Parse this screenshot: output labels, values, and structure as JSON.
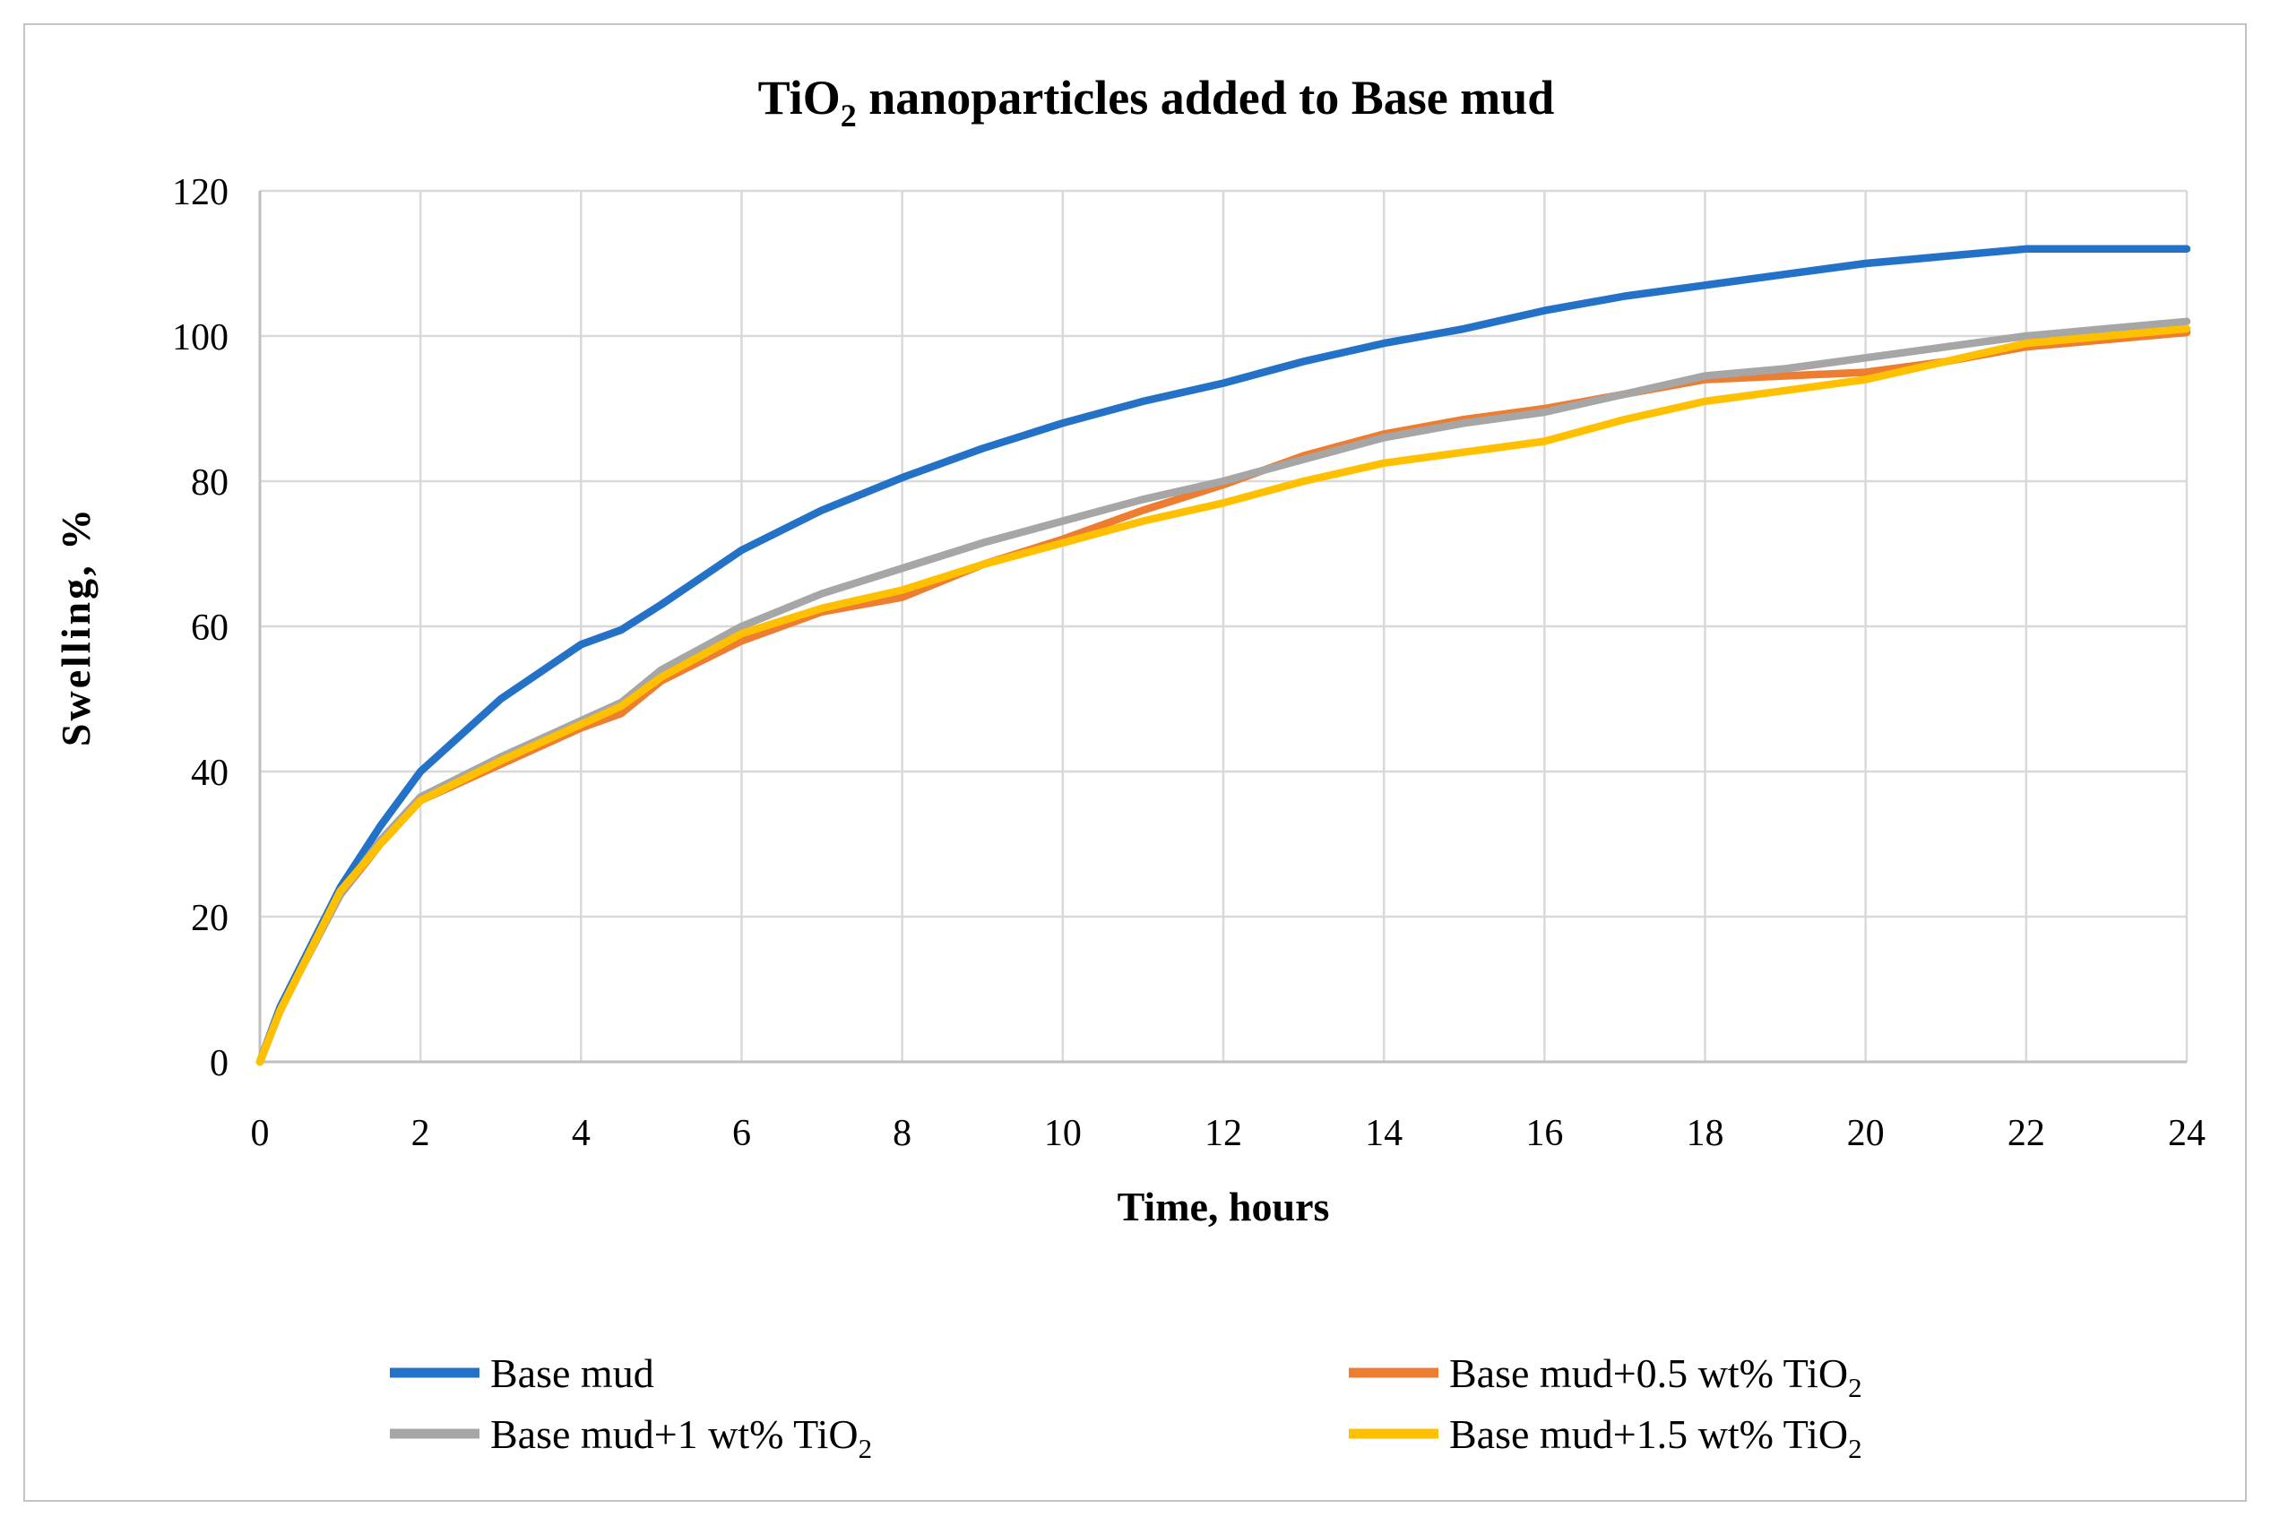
{
  "figure": {
    "background": "#FFFFFF",
    "border_color": "#C4C4C4",
    "gridline_color": "#D9D9D9",
    "axis_line_color": "#BFBFBF"
  },
  "chart_data": {
    "type": "line",
    "title": "TiO2 nanoparticles added to Base mud",
    "title_parts": [
      {
        "t": "TiO"
      },
      {
        "t": "2",
        "sub": true
      },
      {
        "t": " nanoparticles added to Base mud"
      }
    ],
    "xlabel": "Time, hours",
    "ylabel": "Swelling,  %",
    "xlim": [
      0,
      24
    ],
    "ylim": [
      0,
      120
    ],
    "x_ticks": [
      0,
      2,
      4,
      6,
      8,
      10,
      12,
      14,
      16,
      18,
      20,
      22,
      24
    ],
    "y_ticks": [
      0,
      20,
      40,
      60,
      80,
      100,
      120
    ],
    "grid": true,
    "legend_position": "bottom",
    "x": [
      0,
      0.25,
      0.5,
      1,
      1.5,
      2,
      3,
      4,
      4.5,
      5,
      6,
      7,
      8,
      9,
      10,
      11,
      12,
      13,
      14,
      15,
      16,
      17,
      18,
      19,
      20,
      21,
      22,
      23,
      24
    ],
    "series": [
      {
        "name": "Base mud",
        "name_sub": "",
        "color": "#2372C8",
        "values": [
          0,
          7.5,
          13,
          24,
          32.5,
          40,
          50,
          57.5,
          59.5,
          63,
          70.5,
          76,
          80.5,
          84.5,
          88,
          91,
          93.5,
          96.5,
          99,
          101,
          103.5,
          105.5,
          107,
          108.5,
          110,
          111,
          112,
          112,
          112
        ]
      },
      {
        "name": "Base mud+0.5 wt% TiO",
        "name_sub": "2",
        "color": "#ED7D31",
        "values": [
          0,
          7,
          12.5,
          23,
          30,
          36,
          41,
          46,
          48,
          52.5,
          58,
          62,
          64,
          68.5,
          72,
          76,
          79.5,
          83.5,
          86.5,
          88.5,
          90,
          92,
          94,
          94.5,
          95,
          96.5,
          98.5,
          99.5,
          100.5
        ]
      },
      {
        "name": "Base mud+1 wt% TiO",
        "name_sub": "2",
        "color": "#A6A6A6",
        "values": [
          0,
          7,
          12.5,
          23,
          30.5,
          36.5,
          42,
          47,
          49.5,
          54,
          60,
          64.5,
          68,
          71.5,
          74.5,
          77.5,
          80,
          83,
          86,
          88,
          89.5,
          92,
          94.5,
          95.5,
          97,
          98.5,
          100,
          101,
          102
        ]
      },
      {
        "name": "Base mud+1.5 wt% TiO",
        "name_sub": "2",
        "color": "#FFC000",
        "values": [
          0,
          7,
          12.5,
          23.5,
          30,
          36,
          41.5,
          46.5,
          49,
          53,
          59,
          62.5,
          65,
          68.5,
          71.5,
          74.5,
          77,
          80,
          82.5,
          84,
          85.5,
          88.5,
          91,
          92.5,
          94,
          96.5,
          99,
          100,
          101
        ]
      }
    ]
  }
}
